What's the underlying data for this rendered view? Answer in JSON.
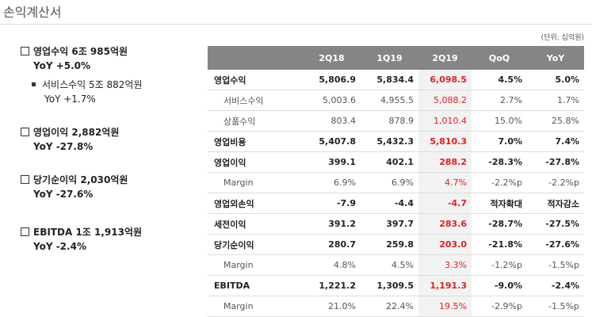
{
  "header": {
    "title": "손익계산서",
    "unit": "(단위: 십억원)"
  },
  "summary": [
    {
      "text": "영업수익 6조 985억원",
      "yoy": "YoY +5.0%",
      "marker": "box"
    },
    {
      "text": "서비스수익 5조 882억원",
      "yoy": "YoY +1.7%",
      "marker": "square"
    },
    {
      "text": "영업이익 2,882억원",
      "yoy": "YoY -27.8%",
      "marker": "box"
    },
    {
      "text": "당기순이익 2,030억원",
      "yoy": "YoY -27.6%",
      "marker": "box"
    },
    {
      "text": "EBITDA 1조 1,913억원",
      "yoy": "YoY -2.4%",
      "marker": "box"
    }
  ],
  "table": {
    "columns": [
      "2Q18",
      "1Q19",
      "2Q19",
      "QoQ",
      "YoY"
    ],
    "rows": [
      {
        "label": "영업수익",
        "bold": true,
        "cells": [
          "5,806.9",
          "5,834.4",
          "6,098.5",
          "4.5%",
          "5.0%"
        ]
      },
      {
        "label": "서비스수익",
        "bold": false,
        "cells": [
          "5,003.6",
          "4,955.5",
          "5,088.2",
          "2.7%",
          "1.7%"
        ]
      },
      {
        "label": "상품수익",
        "bold": false,
        "cells": [
          "803.4",
          "878.9",
          "1,010.4",
          "15.0%",
          "25.8%"
        ]
      },
      {
        "label": "영업비용",
        "bold": true,
        "cells": [
          "5,407.8",
          "5,432.3",
          "5,810.3",
          "7.0%",
          "7.4%"
        ]
      },
      {
        "label": "영업이익",
        "bold": true,
        "cells": [
          "399.1",
          "402.1",
          "288.2",
          "-28.3%",
          "-27.8%"
        ]
      },
      {
        "label": "Margin",
        "bold": false,
        "cells": [
          "6.9%",
          "6.9%",
          "4.7%",
          "-2.2%p",
          "-2.2%p"
        ]
      },
      {
        "label": "영업외손익",
        "bold": true,
        "cells": [
          "-7.9",
          "-4.4",
          "-4.7",
          "적자확대",
          "적자감소"
        ]
      },
      {
        "label": "세전이익",
        "bold": true,
        "cells": [
          "391.2",
          "397.7",
          "283.6",
          "-28.7%",
          "-27.5%"
        ]
      },
      {
        "label": "당기순이익",
        "bold": true,
        "cells": [
          "280.7",
          "259.8",
          "203.0",
          "-21.8%",
          "-27.6%"
        ]
      },
      {
        "label": "Margin",
        "bold": false,
        "cells": [
          "4.8%",
          "4.5%",
          "3.3%",
          "-1.2%p",
          "-1.5%p"
        ]
      },
      {
        "label": "EBITDA",
        "bold": true,
        "cells": [
          "1,221.2",
          "1,309.5",
          "1,191.3",
          "-9.0%",
          "-2.4%"
        ]
      },
      {
        "label": "Margin",
        "bold": false,
        "cells": [
          "21.0%",
          "22.4%",
          "19.5%",
          "-2.9%p",
          "-1.5%p"
        ]
      }
    ],
    "highlight_column": 2
  }
}
